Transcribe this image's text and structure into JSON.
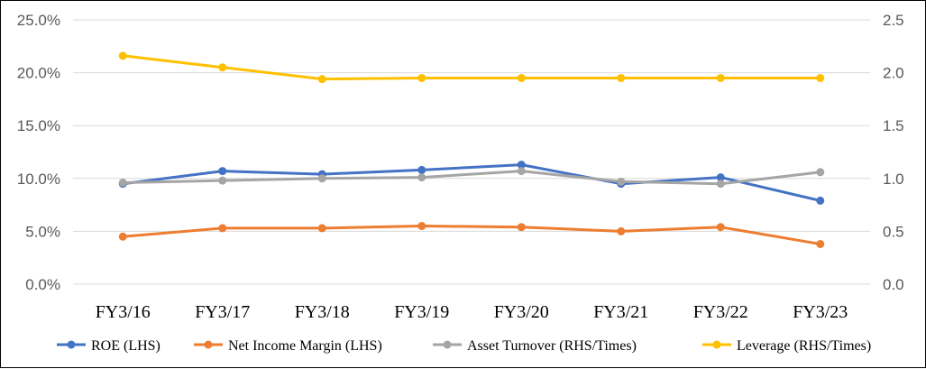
{
  "chart_data": {
    "type": "line",
    "title": "",
    "categories": [
      "FY3/16",
      "FY3/17",
      "FY3/18",
      "FY3/19",
      "FY3/20",
      "FY3/21",
      "FY3/22",
      "FY3/23"
    ],
    "y_left": {
      "min": 0,
      "max": 0.25,
      "step": 0.05,
      "tick_labels": [
        "0.0%",
        "5.0%",
        "10.0%",
        "15.0%",
        "20.0%",
        "25.0%"
      ]
    },
    "y_right": {
      "min": 0,
      "max": 2.5,
      "step": 0.5,
      "tick_labels": [
        "0.0",
        "0.5",
        "1.0",
        "1.5",
        "2.0",
        "2.5"
      ]
    },
    "grid": "horizontal",
    "legend_position": "bottom",
    "series": [
      {
        "name": "ROE (LHS)",
        "axis": "left",
        "color": "#4472C4",
        "values": [
          0.095,
          0.107,
          0.104,
          0.108,
          0.113,
          0.095,
          0.101,
          0.079
        ]
      },
      {
        "name": "Net Income Margin (LHS)",
        "axis": "left",
        "color": "#ED7D31",
        "values": [
          0.045,
          0.053,
          0.053,
          0.055,
          0.054,
          0.05,
          0.054,
          0.038
        ]
      },
      {
        "name": "Asset Turnover (RHS/Times)",
        "axis": "right",
        "color": "#A5A5A5",
        "values": [
          0.96,
          0.98,
          1.0,
          1.01,
          1.07,
          0.97,
          0.95,
          1.06
        ]
      },
      {
        "name": "Leverage (RHS/Times)",
        "axis": "right",
        "color": "#FFC000",
        "values": [
          2.16,
          2.05,
          1.94,
          1.95,
          1.95,
          1.95,
          1.95,
          1.95
        ]
      }
    ]
  }
}
